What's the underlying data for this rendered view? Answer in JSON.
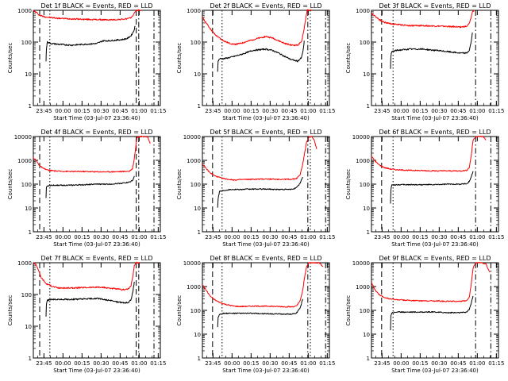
{
  "figure": {
    "x_axis_label": "Start Time (03-Jul-07 23:36:40)",
    "y_axis_label": "Counts/sec",
    "x_tick_labels": [
      "23:45",
      "00:00",
      "00:15",
      "00:30",
      "00:45",
      "01:00",
      "01:15"
    ],
    "x_ticks_min": [
      8.33,
      23.33,
      38.33,
      53.33,
      68.33,
      83.33,
      98.33
    ],
    "colors": {
      "events": "#000000",
      "lld": "#ff0000",
      "frame": "#000000",
      "background": "#ffffff"
    }
  },
  "chart_data": [
    {
      "type": "line",
      "title": "Det 1f BLACK = Events, RED = LLD",
      "xlabel": "Start Time (03-Jul-07 23:36:40)",
      "ylabel": "Counts/sec",
      "xlim": [
        0,
        100
      ],
      "ylim": [
        1,
        1000
      ],
      "y_scale": "log",
      "y_tick_labels": [
        "1",
        "10",
        "100",
        "1000"
      ],
      "vlines": [
        {
          "x": 5,
          "style": "dashed"
        },
        {
          "x": 13,
          "style": "dotted"
        },
        {
          "x": 81,
          "style": "dashed"
        },
        {
          "x": 83,
          "style": "dash-dot"
        },
        {
          "x": 95,
          "style": "dash-dot"
        }
      ],
      "series": [
        {
          "name": "LLD",
          "color": "#ff0000",
          "x": [
            0,
            2,
            5,
            8,
            12,
            20,
            30,
            40,
            50,
            60,
            70,
            76,
            78,
            79.5,
            80.5,
            81.5,
            83,
            85
          ],
          "y": [
            1000,
            880,
            700,
            640,
            600,
            560,
            540,
            520,
            510,
            500,
            520,
            560,
            650,
            800,
            950,
            1000,
            1000,
            1000
          ]
        },
        {
          "name": "Events",
          "color": "#000000",
          "x": [
            10,
            10.3,
            11,
            14,
            20,
            30,
            40,
            50,
            55,
            60,
            65,
            70,
            74,
            77,
            79,
            80.2
          ],
          "y": [
            25,
            60,
            100,
            90,
            85,
            80,
            85,
            90,
            110,
            110,
            115,
            120,
            130,
            160,
            220,
            320
          ]
        }
      ]
    },
    {
      "type": "line",
      "title": "Det 2f BLACK = Events, RED = LLD",
      "xlabel": "Start Time (03-Jul-07 23:36:40)",
      "ylabel": "Counts/sec",
      "xlim": [
        0,
        100
      ],
      "ylim": [
        1,
        1000
      ],
      "y_scale": "log",
      "y_tick_labels": [
        "1",
        "10",
        "100",
        "1000"
      ],
      "vlines": [
        {
          "x": 8,
          "style": "dashed"
        },
        {
          "x": 15.5,
          "style": "dotted"
        },
        {
          "x": 83,
          "style": "dash-dot"
        },
        {
          "x": 85,
          "style": "dotted"
        },
        {
          "x": 97,
          "style": "dash-dot"
        }
      ],
      "series": [
        {
          "name": "LLD",
          "color": "#ff0000",
          "x": [
            0,
            3,
            6,
            10,
            15,
            20,
            25,
            30,
            40,
            50,
            55,
            60,
            65,
            70,
            75,
            78,
            80,
            81.5,
            82.5,
            84,
            86
          ],
          "y": [
            600,
            400,
            270,
            170,
            120,
            95,
            85,
            90,
            120,
            150,
            135,
            110,
            90,
            80,
            80,
            100,
            250,
            600,
            1000,
            1000,
            1000
          ]
        },
        {
          "name": "Events",
          "color": "#000000",
          "x": [
            12,
            12.4,
            13.5,
            17,
            22,
            30,
            40,
            50,
            55,
            60,
            65,
            70,
            75,
            78,
            79.5,
            80.2
          ],
          "y": [
            12,
            25,
            30,
            30,
            33,
            40,
            55,
            60,
            55,
            45,
            35,
            28,
            25,
            32,
            60,
            110
          ]
        }
      ]
    },
    {
      "type": "line",
      "title": "Det 3f BLACK = Events, RED = LLD",
      "xlabel": "Start Time (03-Jul-07 23:36:40)",
      "ylabel": "Counts/sec",
      "xlim": [
        0,
        100
      ],
      "ylim": [
        1,
        1000
      ],
      "y_scale": "log",
      "y_tick_labels": [
        "1",
        "10",
        "100",
        "1000"
      ],
      "vlines": [
        {
          "x": 8,
          "style": "dashed"
        },
        {
          "x": 17,
          "style": "dotted"
        },
        {
          "x": 82,
          "style": "dash-dot"
        },
        {
          "x": 94,
          "style": "dash-dot"
        }
      ],
      "series": [
        {
          "name": "LLD",
          "color": "#ff0000",
          "x": [
            0,
            3,
            6,
            10,
            15,
            20,
            30,
            40,
            50,
            60,
            70,
            75,
            77,
            78.5,
            79.5,
            81
          ],
          "y": [
            800,
            650,
            520,
            420,
            380,
            360,
            330,
            330,
            320,
            310,
            300,
            310,
            380,
            600,
            900,
            1000
          ]
        },
        {
          "name": "Events",
          "color": "#000000",
          "x": [
            15,
            15.3,
            16,
            20,
            30,
            40,
            50,
            60,
            70,
            75,
            77,
            78.5,
            79.5
          ],
          "y": [
            15,
            35,
            50,
            55,
            60,
            60,
            55,
            50,
            45,
            45,
            55,
            100,
            200
          ]
        }
      ]
    },
    {
      "type": "line",
      "title": "Det 4f BLACK = Events, RED = LLD",
      "xlabel": "Start Time (03-Jul-07 23:36:40)",
      "ylabel": "Counts/sec",
      "xlim": [
        0,
        100
      ],
      "ylim": [
        1,
        10000
      ],
      "y_scale": "log",
      "y_tick_labels": [
        "1",
        "10",
        "100",
        "1000",
        "10000"
      ],
      "vlines": [
        {
          "x": 5,
          "style": "dashed"
        },
        {
          "x": 13,
          "style": "dotted"
        },
        {
          "x": 81,
          "style": "dashed"
        },
        {
          "x": 83,
          "style": "dash-dot"
        },
        {
          "x": 95,
          "style": "dash-dot"
        }
      ],
      "series": [
        {
          "name": "LLD",
          "color": "#ff0000",
          "x": [
            0,
            2,
            5,
            8,
            12,
            20,
            30,
            40,
            50,
            60,
            70,
            76,
            78,
            79,
            80.5,
            81.5,
            83,
            86,
            88,
            90,
            92
          ],
          "y": [
            1300,
            1000,
            600,
            450,
            380,
            350,
            340,
            340,
            330,
            330,
            340,
            350,
            450,
            800,
            3000,
            9000,
            10000,
            10000,
            10000,
            9500,
            5000
          ]
        },
        {
          "name": "Events",
          "color": "#000000",
          "x": [
            10,
            10.3,
            11,
            15,
            20,
            30,
            40,
            50,
            60,
            70,
            75,
            77,
            78.5,
            79.5
          ],
          "y": [
            25,
            70,
            85,
            90,
            90,
            90,
            95,
            100,
            100,
            110,
            120,
            130,
            150,
            220
          ]
        }
      ]
    },
    {
      "type": "line",
      "title": "Det 5f BLACK = Events, RED = LLD",
      "xlabel": "Start Time (03-Jul-07 23:36:40)",
      "ylabel": "Counts/sec",
      "xlim": [
        0,
        100
      ],
      "ylim": [
        1,
        10000
      ],
      "y_scale": "log",
      "y_tick_labels": [
        "1",
        "10",
        "100",
        "1000",
        "10000"
      ],
      "vlines": [
        {
          "x": 8,
          "style": "dashed"
        },
        {
          "x": 15.5,
          "style": "dotted"
        },
        {
          "x": 83,
          "style": "dash-dot"
        },
        {
          "x": 85,
          "style": "dotted"
        },
        {
          "x": 97,
          "style": "dash-dot"
        }
      ],
      "series": [
        {
          "name": "LLD",
          "color": "#ff0000",
          "x": [
            0,
            3,
            6,
            10,
            15,
            20,
            25,
            30,
            40,
            50,
            60,
            70,
            74,
            77,
            79,
            80.5,
            82,
            84,
            86,
            88,
            90
          ],
          "y": [
            700,
            450,
            300,
            220,
            180,
            160,
            150,
            155,
            160,
            165,
            160,
            160,
            170,
            250,
            700,
            2000,
            6000,
            9500,
            10000,
            7000,
            3000
          ]
        },
        {
          "name": "Events",
          "color": "#000000",
          "x": [
            12,
            12.4,
            13.5,
            17,
            22,
            30,
            40,
            50,
            60,
            70,
            74,
            77,
            79
          ],
          "y": [
            10,
            25,
            50,
            55,
            60,
            60,
            62,
            62,
            60,
            60,
            70,
            110,
            200
          ]
        }
      ]
    },
    {
      "type": "line",
      "title": "Det 6f BLACK = Events, RED = LLD",
      "xlabel": "Start Time (03-Jul-07 23:36:40)",
      "ylabel": "Counts/sec",
      "xlim": [
        0,
        100
      ],
      "ylim": [
        1,
        10000
      ],
      "y_scale": "log",
      "y_tick_labels": [
        "1",
        "10",
        "100",
        "1000",
        "10000"
      ],
      "vlines": [
        {
          "x": 8,
          "style": "dashed"
        },
        {
          "x": 17,
          "style": "dotted"
        },
        {
          "x": 82,
          "style": "dash-dot"
        },
        {
          "x": 94,
          "style": "dash-dot"
        }
      ],
      "series": [
        {
          "name": "LLD",
          "color": "#ff0000",
          "x": [
            0,
            3,
            6,
            10,
            15,
            20,
            30,
            40,
            50,
            60,
            70,
            75,
            77,
            78.5,
            80,
            82,
            85,
            88,
            90
          ],
          "y": [
            1500,
            900,
            650,
            500,
            430,
            400,
            380,
            370,
            360,
            360,
            360,
            380,
            500,
            1500,
            7000,
            10000,
            10000,
            10000,
            7000
          ]
        },
        {
          "name": "Events",
          "color": "#000000",
          "x": [
            15,
            15.3,
            16,
            20,
            30,
            40,
            50,
            60,
            70,
            75,
            77,
            78.5,
            80
          ],
          "y": [
            15,
            60,
            90,
            95,
            95,
            95,
            95,
            100,
            100,
            105,
            130,
            200,
            350
          ]
        }
      ]
    },
    {
      "type": "line",
      "title": "Det 7f BLACK = Events, RED = LLD",
      "xlabel": "Start Time (03-Jul-07 23:36:40)",
      "ylabel": "Counts/sec",
      "xlim": [
        0,
        100
      ],
      "ylim": [
        1,
        1000
      ],
      "y_scale": "log",
      "y_tick_labels": [
        "1",
        "10",
        "100",
        "1000"
      ],
      "vlines": [
        {
          "x": 5,
          "style": "dashed"
        },
        {
          "x": 13,
          "style": "dotted"
        },
        {
          "x": 81,
          "style": "dashed"
        },
        {
          "x": 83,
          "style": "dash-dot"
        },
        {
          "x": 95,
          "style": "dash-dot"
        }
      ],
      "series": [
        {
          "name": "LLD",
          "color": "#ff0000",
          "x": [
            0,
            2,
            4,
            6,
            10,
            15,
            20,
            30,
            40,
            50,
            60,
            65,
            70,
            75,
            77,
            78.5,
            79.5,
            81,
            84
          ],
          "y": [
            1000,
            900,
            600,
            350,
            220,
            180,
            160,
            160,
            165,
            170,
            160,
            150,
            140,
            150,
            200,
            400,
            800,
            1000,
            1000
          ]
        },
        {
          "name": "Events",
          "color": "#000000",
          "x": [
            10,
            10.3,
            11,
            14,
            20,
            30,
            40,
            50,
            60,
            65,
            70,
            75,
            77,
            78.5,
            79.5
          ],
          "y": [
            20,
            50,
            65,
            70,
            70,
            70,
            72,
            75,
            65,
            60,
            55,
            55,
            70,
            130,
            250
          ]
        }
      ]
    },
    {
      "type": "line",
      "title": "Det 8f BLACK = Events, RED = LLD",
      "xlabel": "Start Time (03-Jul-07 23:36:40)",
      "ylabel": "Counts/sec",
      "xlim": [
        0,
        100
      ],
      "ylim": [
        1,
        10000
      ],
      "y_scale": "log",
      "y_tick_labels": [
        "1",
        "10",
        "100",
        "1000",
        "10000"
      ],
      "vlines": [
        {
          "x": 8,
          "style": "dashed"
        },
        {
          "x": 15.5,
          "style": "dotted"
        },
        {
          "x": 83,
          "style": "dash-dot"
        },
        {
          "x": 85,
          "style": "dotted"
        },
        {
          "x": 97,
          "style": "dash-dot"
        }
      ],
      "series": [
        {
          "name": "LLD",
          "color": "#ff0000",
          "x": [
            0,
            3,
            6,
            10,
            15,
            20,
            25,
            30,
            40,
            50,
            60,
            70,
            74,
            77,
            79,
            80.5,
            82,
            84,
            88,
            92,
            95
          ],
          "y": [
            1200,
            700,
            400,
            270,
            200,
            170,
            150,
            145,
            150,
            150,
            145,
            140,
            150,
            250,
            700,
            2500,
            7000,
            10000,
            10000,
            10000,
            7000
          ]
        },
        {
          "name": "Events",
          "color": "#000000",
          "x": [
            12,
            12.4,
            13.5,
            17,
            22,
            30,
            40,
            50,
            60,
            70,
            74,
            77,
            79
          ],
          "y": [
            20,
            50,
            70,
            75,
            75,
            75,
            75,
            72,
            70,
            70,
            75,
            130,
            300
          ]
        }
      ]
    },
    {
      "type": "line",
      "title": "Det 9f BLACK = Events, RED = LLD",
      "xlabel": "Start Time (03-Jul-07 23:36:40)",
      "ylabel": "Counts/sec",
      "xlim": [
        0,
        100
      ],
      "ylim": [
        1,
        10000
      ],
      "y_scale": "log",
      "y_tick_labels": [
        "1",
        "10",
        "100",
        "1000",
        "10000"
      ],
      "vlines": [
        {
          "x": 8,
          "style": "dashed"
        },
        {
          "x": 17,
          "style": "dotted"
        },
        {
          "x": 82,
          "style": "dash-dot"
        },
        {
          "x": 94,
          "style": "dash-dot"
        }
      ],
      "series": [
        {
          "name": "LLD",
          "color": "#ff0000",
          "x": [
            0,
            3,
            6,
            10,
            15,
            20,
            30,
            40,
            50,
            60,
            70,
            75,
            77,
            78.5,
            80,
            82,
            86,
            90,
            93
          ],
          "y": [
            1500,
            700,
            450,
            350,
            300,
            280,
            260,
            250,
            250,
            240,
            240,
            250,
            350,
            1200,
            6000,
            10000,
            10000,
            9000,
            4000
          ]
        },
        {
          "name": "Events",
          "color": "#000000",
          "x": [
            15,
            15.3,
            16,
            20,
            30,
            40,
            50,
            60,
            70,
            75,
            77,
            78.5,
            80
          ],
          "y": [
            15,
            60,
            80,
            85,
            85,
            85,
            85,
            80,
            80,
            85,
            110,
            200,
            400
          ]
        }
      ]
    }
  ]
}
